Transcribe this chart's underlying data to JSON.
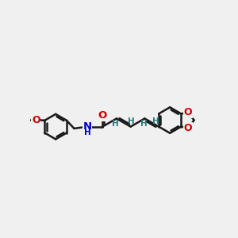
{
  "background_color": "#f0f0f0",
  "bond_color": "#1a1a1a",
  "bond_width": 1.8,
  "atom_colors": {
    "O": "#cc0000",
    "N": "#0000cc",
    "H_vinyl": "#2a7a7a",
    "C": "#1a1a1a"
  },
  "figsize": [
    3.0,
    3.0
  ],
  "dpi": 100,
  "xlim": [
    0,
    10
  ],
  "ylim": [
    -2,
    4
  ]
}
